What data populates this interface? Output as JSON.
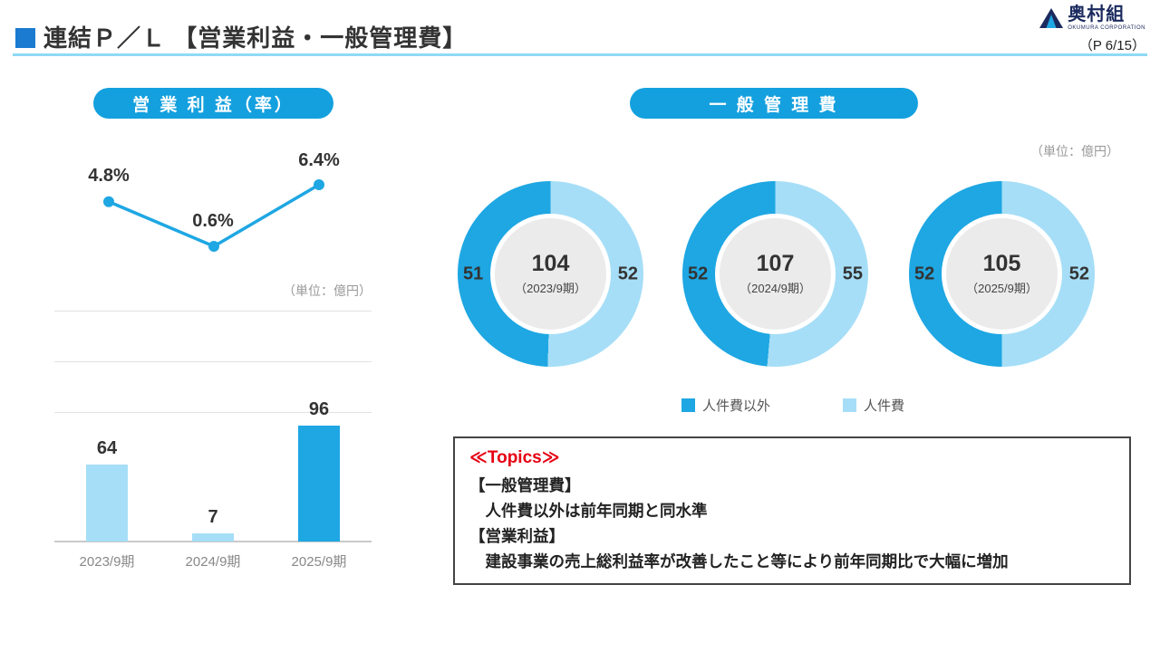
{
  "header": {
    "title": "連結Ｐ／Ｌ 【営業利益・一般管理費】",
    "page": "（P 6/15）",
    "logo_text": "奥村組",
    "logo_subtext": "OKUMURA CORPORATION"
  },
  "colors": {
    "accent_blue": "#1ea7e3",
    "light_blue": "#a6def7",
    "header_square": "#1a7bd0",
    "divider_blue": "#8fd9f6",
    "logo_navy": "#1b2a5e",
    "topics_red": "#e60012",
    "donut_center_gray": "#ebebeb"
  },
  "left_section": {
    "pill_label": "営 業 利 益（率）",
    "unit_note": "（単位：億円）",
    "line_labels": [
      "4.8%",
      "0.6%",
      "6.4%"
    ],
    "bar_labels": [
      "64",
      "7",
      "96"
    ],
    "x_labels": [
      "2023/9期",
      "2024/9期",
      "2025/9期"
    ]
  },
  "right_section": {
    "pill_label": "一 般 管 理 費",
    "unit_note": "（単位：億円）",
    "legend": [
      {
        "label": "人件費以外",
        "color_key": "accent_blue"
      },
      {
        "label": "人件費",
        "color_key": "light_blue"
      }
    ],
    "donuts": [
      {
        "total": "104",
        "period": "（2023/9期）",
        "left_value": "51",
        "right_value": "52"
      },
      {
        "total": "107",
        "period": "（2024/9期）",
        "left_value": "52",
        "right_value": "55"
      },
      {
        "total": "105",
        "period": "（2025/9期）",
        "left_value": "52",
        "right_value": "52"
      }
    ]
  },
  "topics": {
    "heading": "≪Topics≫",
    "lines": [
      "【一般管理費】",
      "　人件費以外は前年同期と同水準",
      "【営業利益】",
      "　建設事業の売上総利益率が改善したこと等により前年同期比で大幅に増加"
    ]
  },
  "chart_data": [
    {
      "type": "line",
      "title": "営業利益（率）",
      "unit": "%",
      "categories": [
        "2023/9期",
        "2024/9期",
        "2025/9期"
      ],
      "values": [
        4.8,
        0.6,
        6.4
      ],
      "labels": [
        "4.8%",
        "0.6%",
        "6.4%"
      ],
      "legend_position": "none",
      "grid": false
    },
    {
      "type": "bar",
      "title": "営業利益",
      "unit": "億円",
      "categories": [
        "2023/9期",
        "2024/9期",
        "2025/9期"
      ],
      "values": [
        64,
        7,
        96
      ],
      "bar_color_keys": [
        "light_blue",
        "light_blue",
        "accent_blue"
      ],
      "ylim": [
        0,
        150
      ],
      "grid": true
    },
    {
      "type": "pie",
      "title": "一般管理費",
      "unit": "億円",
      "series_labels": [
        "人件費以外",
        "人件費"
      ],
      "donuts": [
        {
          "period": "2023/9期",
          "total": 104,
          "values": [
            51,
            52
          ]
        },
        {
          "period": "2024/9期",
          "total": 107,
          "values": [
            52,
            55
          ]
        },
        {
          "period": "2025/9期",
          "total": 105,
          "values": [
            52,
            52
          ]
        }
      ],
      "legend_position": "bottom"
    }
  ]
}
